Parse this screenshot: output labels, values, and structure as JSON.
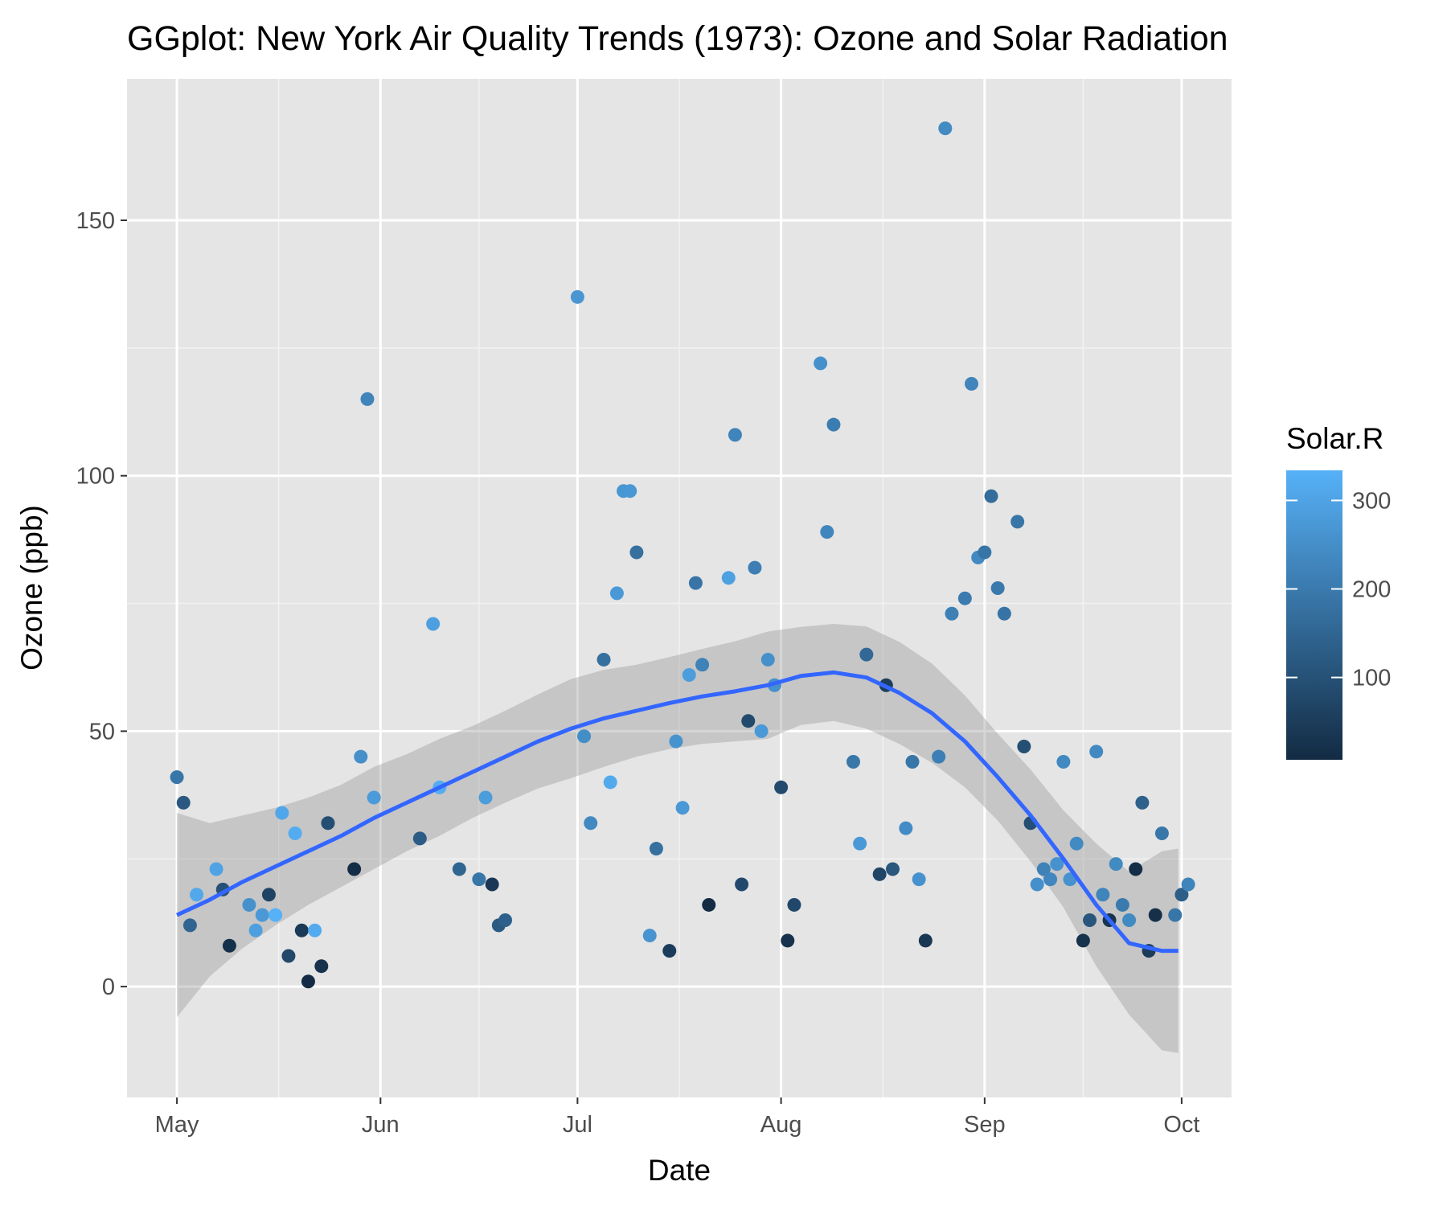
{
  "chart_data": {
    "type": "scatter",
    "title": "GGplot: New York Air Quality Trends (1973): Ozone and Solar Radiation",
    "xlabel": "Date",
    "ylabel": "Ozone (ppb)",
    "x_tick_labels": [
      "May",
      "Jun",
      "Jul",
      "Aug",
      "Sep",
      "Oct"
    ],
    "x_tick_days": [
      0,
      31,
      61,
      92,
      123,
      153
    ],
    "x_range_days": [
      -7.6,
      160.6
    ],
    "y_ticks": [
      0,
      50,
      100,
      150
    ],
    "ylim": [
      -21.7,
      177.7
    ],
    "grid": true,
    "legend": {
      "title": "Solar.R",
      "position": "right",
      "range": [
        7,
        334
      ],
      "ticks": [
        100,
        200,
        300
      ],
      "color_low": "#132B43",
      "color_high": "#56B1F7"
    },
    "smooth": {
      "method": "loess",
      "color": "#3366FF",
      "band_color": "#999999",
      "x": [
        0,
        5,
        10,
        15,
        20,
        25,
        30,
        35,
        40,
        45,
        50,
        55,
        60,
        65,
        70,
        75,
        80,
        85,
        90,
        95,
        100,
        105,
        110,
        115,
        120,
        125,
        130,
        135,
        140,
        145,
        150,
        152.5
      ],
      "y": [
        14,
        17,
        20.5,
        23.5,
        26.5,
        29.5,
        33,
        36,
        39,
        42,
        45,
        48,
        50.5,
        52.5,
        54,
        55.5,
        56.8,
        57.8,
        59,
        60.8,
        61.5,
        60.5,
        57.5,
        53.5,
        48,
        41,
        33.5,
        25,
        16,
        8.5,
        7,
        7
      ],
      "lower": [
        -6,
        2,
        7.5,
        12,
        16,
        19.5,
        23,
        26.5,
        29.5,
        33,
        36,
        38.8,
        40.8,
        43,
        45,
        46.5,
        47.5,
        48,
        48.5,
        51.2,
        52,
        50.5,
        47.5,
        43.8,
        39,
        32.5,
        24.5,
        15.5,
        4,
        -5.5,
        -12.5,
        -13
      ]
    },
    "series": [
      {
        "name": "Ozone",
        "points": [
          {
            "x": 0,
            "y": 41,
            "c": 190
          },
          {
            "x": 1,
            "y": 36,
            "c": 118
          },
          {
            "x": 2,
            "y": 12,
            "c": 149
          },
          {
            "x": 3,
            "y": 18,
            "c": 313
          },
          {
            "x": 6,
            "y": 23,
            "c": 299
          },
          {
            "x": 7,
            "y": 19,
            "c": 99
          },
          {
            "x": 8,
            "y": 8,
            "c": 19
          },
          {
            "x": 11,
            "y": 16,
            "c": 256
          },
          {
            "x": 12,
            "y": 11,
            "c": 290
          },
          {
            "x": 13,
            "y": 14,
            "c": 274
          },
          {
            "x": 14,
            "y": 18,
            "c": 65
          },
          {
            "x": 15,
            "y": 14,
            "c": 334
          },
          {
            "x": 16,
            "y": 34,
            "c": 307
          },
          {
            "x": 17,
            "y": 6,
            "c": 78
          },
          {
            "x": 18,
            "y": 30,
            "c": 322
          },
          {
            "x": 19,
            "y": 11,
            "c": 44
          },
          {
            "x": 20,
            "y": 1,
            "c": 8
          },
          {
            "x": 21,
            "y": 11,
            "c": 320
          },
          {
            "x": 22,
            "y": 4,
            "c": 25
          },
          {
            "x": 23,
            "y": 32,
            "c": 92
          },
          {
            "x": 27,
            "y": 23,
            "c": 13
          },
          {
            "x": 28,
            "y": 45,
            "c": 252
          },
          {
            "x": 29,
            "y": 115,
            "c": 223
          },
          {
            "x": 30,
            "y": 37,
            "c": 279
          },
          {
            "x": 37,
            "y": 29,
            "c": 127
          },
          {
            "x": 39,
            "y": 71,
            "c": 291
          },
          {
            "x": 40,
            "y": 39,
            "c": 323
          },
          {
            "x": 43,
            "y": 23,
            "c": 148
          },
          {
            "x": 46,
            "y": 21,
            "c": 191
          },
          {
            "x": 47,
            "y": 37,
            "c": 284
          },
          {
            "x": 48,
            "y": 20,
            "c": 37
          },
          {
            "x": 49,
            "y": 12,
            "c": 120
          },
          {
            "x": 50,
            "y": 13,
            "c": 137
          },
          {
            "x": 61,
            "y": 135,
            "c": 269
          },
          {
            "x": 62,
            "y": 49,
            "c": 248
          },
          {
            "x": 63,
            "y": 32,
            "c": 236
          },
          {
            "x": 65,
            "y": 64,
            "c": 175
          },
          {
            "x": 66,
            "y": 40,
            "c": 314
          },
          {
            "x": 67,
            "y": 77,
            "c": 276
          },
          {
            "x": 68,
            "y": 97,
            "c": 267
          },
          {
            "x": 69,
            "y": 97,
            "c": 272
          },
          {
            "x": 70,
            "y": 85,
            "c": 175
          },
          {
            "x": 72,
            "y": 10,
            "c": 264
          },
          {
            "x": 73,
            "y": 27,
            "c": 175
          },
          {
            "x": 75,
            "y": 7,
            "c": 48
          },
          {
            "x": 76,
            "y": 48,
            "c": 260
          },
          {
            "x": 77,
            "y": 35,
            "c": 274
          },
          {
            "x": 78,
            "y": 61,
            "c": 285
          },
          {
            "x": 79,
            "y": 79,
            "c": 187
          },
          {
            "x": 80,
            "y": 63,
            "c": 220
          },
          {
            "x": 81,
            "y": 16,
            "c": 7
          },
          {
            "x": 84,
            "y": 80,
            "c": 294
          },
          {
            "x": 85,
            "y": 108,
            "c": 223
          },
          {
            "x": 86,
            "y": 20,
            "c": 81
          },
          {
            "x": 87,
            "y": 52,
            "c": 82
          },
          {
            "x": 88,
            "y": 82,
            "c": 213
          },
          {
            "x": 89,
            "y": 50,
            "c": 275
          },
          {
            "x": 90,
            "y": 64,
            "c": 253
          },
          {
            "x": 91,
            "y": 59,
            "c": 254
          },
          {
            "x": 92,
            "y": 39,
            "c": 83
          },
          {
            "x": 93,
            "y": 9,
            "c": 24
          },
          {
            "x": 94,
            "y": 16,
            "c": 77
          },
          {
            "x": 98,
            "y": 122,
            "c": 255
          },
          {
            "x": 99,
            "y": 89,
            "c": 229
          },
          {
            "x": 100,
            "y": 110,
            "c": 207
          },
          {
            "x": 103,
            "y": 44,
            "c": 192
          },
          {
            "x": 104,
            "y": 28,
            "c": 273
          },
          {
            "x": 105,
            "y": 65,
            "c": 157
          },
          {
            "x": 107,
            "y": 22,
            "c": 71
          },
          {
            "x": 108,
            "y": 59,
            "c": 51
          },
          {
            "x": 109,
            "y": 23,
            "c": 115
          },
          {
            "x": 111,
            "y": 31,
            "c": 244
          },
          {
            "x": 112,
            "y": 44,
            "c": 190
          },
          {
            "x": 113,
            "y": 21,
            "c": 259
          },
          {
            "x": 114,
            "y": 9,
            "c": 36
          },
          {
            "x": 116,
            "y": 45,
            "c": 212
          },
          {
            "x": 117,
            "y": 168,
            "c": 238
          },
          {
            "x": 118,
            "y": 73,
            "c": 215
          },
          {
            "x": 120,
            "y": 76,
            "c": 203
          },
          {
            "x": 121,
            "y": 118,
            "c": 225
          },
          {
            "x": 122,
            "y": 84,
            "c": 237
          },
          {
            "x": 123,
            "y": 85,
            "c": 188
          },
          {
            "x": 124,
            "y": 96,
            "c": 167
          },
          {
            "x": 125,
            "y": 78,
            "c": 197
          },
          {
            "x": 126,
            "y": 73,
            "c": 183
          },
          {
            "x": 128,
            "y": 91,
            "c": 189
          },
          {
            "x": 129,
            "y": 47,
            "c": 95
          },
          {
            "x": 130,
            "y": 32,
            "c": 92
          },
          {
            "x": 131,
            "y": 20,
            "c": 252
          },
          {
            "x": 132,
            "y": 23,
            "c": 220
          },
          {
            "x": 133,
            "y": 21,
            "c": 230
          },
          {
            "x": 134,
            "y": 24,
            "c": 259
          },
          {
            "x": 135,
            "y": 44,
            "c": 236
          },
          {
            "x": 136,
            "y": 21,
            "c": 259
          },
          {
            "x": 137,
            "y": 28,
            "c": 238
          },
          {
            "x": 138,
            "y": 9,
            "c": 24
          },
          {
            "x": 139,
            "y": 13,
            "c": 112
          },
          {
            "x": 140,
            "y": 46,
            "c": 237
          },
          {
            "x": 141,
            "y": 18,
            "c": 224
          },
          {
            "x": 142,
            "y": 13,
            "c": 27
          },
          {
            "x": 143,
            "y": 24,
            "c": 238
          },
          {
            "x": 144,
            "y": 16,
            "c": 201
          },
          {
            "x": 145,
            "y": 13,
            "c": 238
          },
          {
            "x": 146,
            "y": 23,
            "c": 14
          },
          {
            "x": 147,
            "y": 36,
            "c": 139
          },
          {
            "x": 148,
            "y": 7,
            "c": 49
          },
          {
            "x": 149,
            "y": 14,
            "c": 20
          },
          {
            "x": 150,
            "y": 30,
            "c": 193
          },
          {
            "x": 152,
            "y": 14,
            "c": 191
          },
          {
            "x": 153,
            "y": 18,
            "c": 131
          },
          {
            "x": 154,
            "y": 20,
            "c": 223
          }
        ]
      }
    ]
  }
}
